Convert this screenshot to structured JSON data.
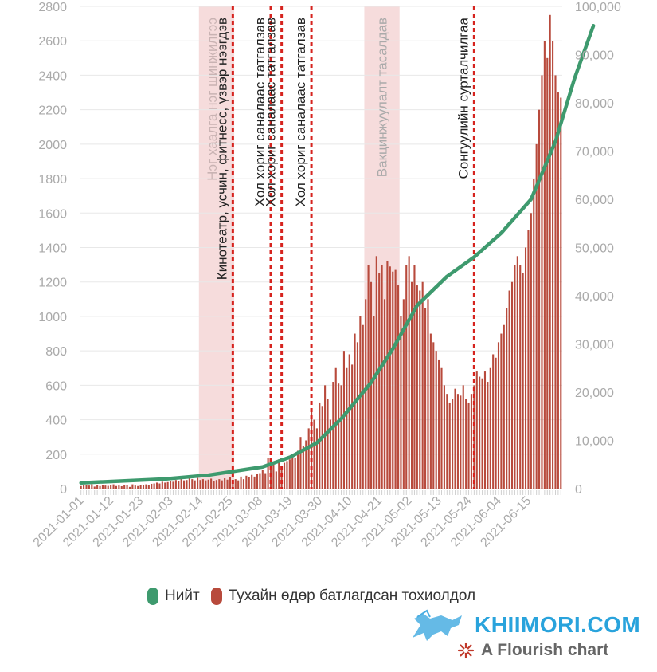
{
  "chart_data": {
    "type": "bar",
    "title": "",
    "x_start_date": "2021-01-01",
    "x_tick_labels": [
      "2021-01-01",
      "2021-01-12",
      "2021-01-23",
      "2021-02-03",
      "2021-02-14",
      "2021-02-25",
      "2021-03-08",
      "2021-03-19",
      "2021-03-30",
      "2021-04-10",
      "2021-04-21",
      "2021-05-02",
      "2021-05-13",
      "2021-05-24",
      "2021-06-04",
      "2021-06-15"
    ],
    "y_left": {
      "min": 0,
      "max": 2800,
      "ticks": [
        "0",
        "200",
        "400",
        "600",
        "800",
        "1000",
        "1200",
        "1400",
        "1600",
        "1800",
        "2000",
        "2200",
        "2400",
        "2600",
        "2800"
      ]
    },
    "y_right": {
      "min": 0,
      "max": 100000,
      "ticks": [
        "0",
        "10,000",
        "20,000",
        "30,000",
        "40,000",
        "50,000",
        "60,000",
        "70,000",
        "80,000",
        "90,000",
        "100,000"
      ]
    },
    "series": [
      {
        "name": "Тухайн өдөр батлагдсан тохиолдол",
        "type": "bar",
        "axis": "left",
        "color": "#b84a3c",
        "values": [
          15,
          20,
          22,
          18,
          25,
          12,
          20,
          15,
          22,
          18,
          16,
          20,
          25,
          15,
          18,
          14,
          20,
          22,
          10,
          25,
          18,
          15,
          20,
          22,
          25,
          20,
          28,
          30,
          35,
          30,
          40,
          35,
          38,
          45,
          40,
          50,
          45,
          55,
          48,
          50,
          60,
          55,
          48,
          62,
          50,
          55,
          48,
          52,
          58,
          45,
          50,
          55,
          48,
          60,
          52,
          65,
          40,
          55,
          48,
          70,
          55,
          75,
          65,
          80,
          70,
          85,
          90,
          110,
          90,
          180,
          120,
          140,
          100,
          170,
          130,
          150,
          160,
          170,
          200,
          180,
          220,
          300,
          250,
          280,
          350,
          450,
          400,
          350,
          500,
          480,
          600,
          520,
          400,
          620,
          700,
          610,
          600,
          800,
          700,
          780,
          720,
          900,
          850,
          1000,
          950,
          1100,
          1300,
          1200,
          1000,
          1350,
          1250,
          1300,
          1100,
          1320,
          1290,
          1260,
          1270,
          1180,
          1000,
          1100,
          1300,
          1350,
          1200,
          1300,
          1180,
          1150,
          1200,
          1050,
          1100,
          900,
          850,
          800,
          750,
          700,
          600,
          550,
          500,
          520,
          580,
          550,
          540,
          600,
          520,
          500,
          550,
          600,
          680,
          650,
          640,
          680,
          620,
          700,
          780,
          760,
          850,
          900,
          950,
          1050,
          1150,
          1200,
          1300,
          1350,
          1300,
          1250,
          1400,
          1500,
          1600,
          1800,
          2000,
          2200,
          2400,
          2600,
          2500,
          2750,
          2600,
          2400,
          2300,
          2270
        ]
      },
      {
        "name": "Нийт",
        "type": "line",
        "axis": "right",
        "color": "#3e9a6e",
        "x_index": [
          0,
          31,
          47,
          67,
          77,
          87,
          96,
          107,
          115,
          124,
          135,
          145,
          155,
          166,
          175,
          182,
          189
        ],
        "values": [
          1200,
          2000,
          2800,
          4500,
          6500,
          9500,
          14500,
          22000,
          29000,
          38000,
          44000,
          48000,
          53000,
          60000,
          72000,
          85000,
          96000
        ]
      }
    ],
    "annotations": {
      "shaded": [
        {
          "start_index": 44,
          "end_index": 56,
          "label": "Нэг хаалга нэг шинжилгээ"
        },
        {
          "start_index": 105,
          "end_index": 117,
          "label": "Вакцинжуулалт тасалдав"
        }
      ],
      "lines": [
        {
          "index": 56,
          "label": "Кинотеатр, усчин, фитнесс, үзвэр нээгдэв"
        },
        {
          "index": 70,
          "label": "Хол хориг саналаас татгалзав"
        },
        {
          "index": 74,
          "label": "Хол хориг саналаас татгалзав"
        },
        {
          "index": 85,
          "label": "Хол хориг саналаас татгалзав"
        },
        {
          "index": 145,
          "label": "Сонгуулийн сурталчилгаа"
        }
      ]
    }
  },
  "legend": {
    "items": [
      {
        "label": "Нийт",
        "color": "#3e9a6e"
      },
      {
        "label": "Тухайн өдөр батлагдсан тохиолдол",
        "color": "#b84a3c"
      }
    ]
  },
  "watermark": {
    "text": "KHIIMORI.COM"
  },
  "credit": {
    "text": "A Flourish chart"
  }
}
